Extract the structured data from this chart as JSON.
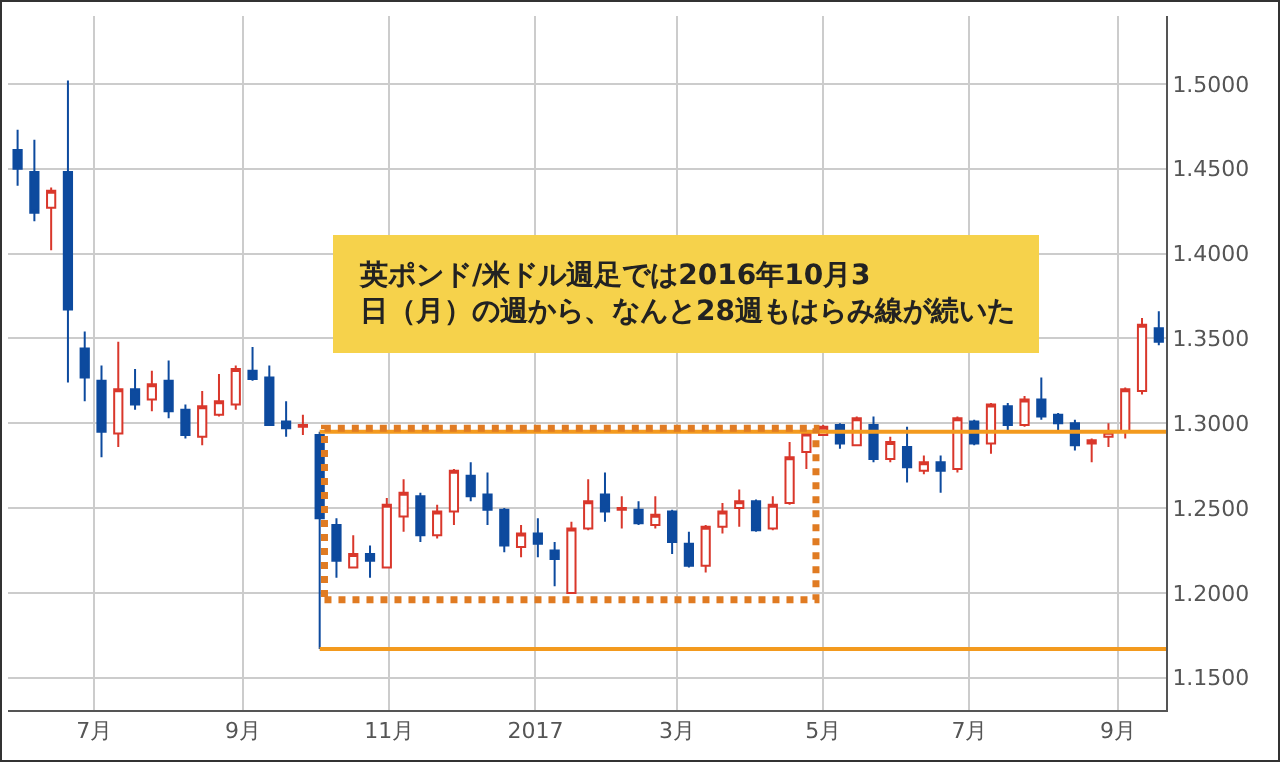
{
  "chart_data": {
    "type": "candlestick",
    "x": [
      "2016-05-30",
      "2016-06-06",
      "2016-06-13",
      "2016-06-20",
      "2016-06-27",
      "2016-07-04",
      "2016-07-11",
      "2016-07-18",
      "2016-07-25",
      "2016-08-01",
      "2016-08-08",
      "2016-08-15",
      "2016-08-22",
      "2016-08-29",
      "2016-09-05",
      "2016-09-12",
      "2016-09-19",
      "2016-09-26",
      "2016-10-03",
      "2016-10-10",
      "2016-10-17",
      "2016-10-24",
      "2016-10-31",
      "2016-11-07",
      "2016-11-14",
      "2016-11-21",
      "2016-11-28",
      "2016-12-05",
      "2016-12-12",
      "2016-12-19",
      "2016-12-26",
      "2017-01-02",
      "2017-01-09",
      "2017-01-16",
      "2017-01-23",
      "2017-01-30",
      "2017-02-06",
      "2017-02-13",
      "2017-02-20",
      "2017-02-27",
      "2017-03-06",
      "2017-03-13",
      "2017-03-20",
      "2017-03-27",
      "2017-04-03",
      "2017-04-10",
      "2017-04-17",
      "2017-04-24",
      "2017-05-01",
      "2017-05-08",
      "2017-05-15",
      "2017-05-22",
      "2017-05-29",
      "2017-06-05",
      "2017-06-12",
      "2017-06-19",
      "2017-06-26",
      "2017-07-03",
      "2017-07-10",
      "2017-07-17",
      "2017-07-24",
      "2017-07-31",
      "2017-08-07",
      "2017-08-14",
      "2017-08-21",
      "2017-08-28",
      "2017-09-04",
      "2017-09-11",
      "2017-09-18"
    ],
    "ohlc": [
      [
        1.461,
        1.473,
        1.44,
        1.45
      ],
      [
        1.448,
        1.467,
        1.419,
        1.424
      ],
      [
        1.427,
        1.439,
        1.402,
        1.437
      ],
      [
        1.448,
        1.502,
        1.324,
        1.367
      ],
      [
        1.344,
        1.354,
        1.313,
        1.327
      ],
      [
        1.325,
        1.334,
        1.28,
        1.295
      ],
      [
        1.294,
        1.348,
        1.286,
        1.32
      ],
      [
        1.32,
        1.332,
        1.308,
        1.311
      ],
      [
        1.314,
        1.331,
        1.307,
        1.323
      ],
      [
        1.325,
        1.337,
        1.303,
        1.307
      ],
      [
        1.308,
        1.311,
        1.291,
        1.293
      ],
      [
        1.292,
        1.319,
        1.287,
        1.31
      ],
      [
        1.305,
        1.329,
        1.304,
        1.313
      ],
      [
        1.311,
        1.334,
        1.308,
        1.332
      ],
      [
        1.331,
        1.345,
        1.325,
        1.326
      ],
      [
        1.327,
        1.334,
        1.299,
        1.299
      ],
      [
        1.301,
        1.313,
        1.292,
        1.297
      ],
      [
        1.298,
        1.305,
        1.293,
        1.299
      ],
      [
        1.293,
        1.295,
        1.167,
        1.244
      ],
      [
        1.24,
        1.244,
        1.209,
        1.219
      ],
      [
        1.215,
        1.234,
        1.215,
        1.223
      ],
      [
        1.223,
        1.228,
        1.209,
        1.219
      ],
      [
        1.215,
        1.256,
        1.215,
        1.252
      ],
      [
        1.245,
        1.267,
        1.236,
        1.259
      ],
      [
        1.257,
        1.259,
        1.23,
        1.234
      ],
      [
        1.234,
        1.252,
        1.232,
        1.248
      ],
      [
        1.248,
        1.273,
        1.24,
        1.272
      ],
      [
        1.269,
        1.277,
        1.254,
        1.257
      ],
      [
        1.258,
        1.271,
        1.24,
        1.249
      ],
      [
        1.249,
        1.25,
        1.224,
        1.228
      ],
      [
        1.227,
        1.24,
        1.221,
        1.235
      ],
      [
        1.235,
        1.244,
        1.221,
        1.229
      ],
      [
        1.225,
        1.23,
        1.204,
        1.22
      ],
      [
        1.2,
        1.242,
        1.2,
        1.238
      ],
      [
        1.238,
        1.267,
        1.237,
        1.254
      ],
      [
        1.258,
        1.271,
        1.242,
        1.248
      ],
      [
        1.249,
        1.257,
        1.238,
        1.25
      ],
      [
        1.249,
        1.254,
        1.24,
        1.241
      ],
      [
        1.24,
        1.257,
        1.238,
        1.246
      ],
      [
        1.248,
        1.249,
        1.223,
        1.23
      ],
      [
        1.229,
        1.236,
        1.215,
        1.216
      ],
      [
        1.216,
        1.24,
        1.212,
        1.239
      ],
      [
        1.239,
        1.253,
        1.235,
        1.248
      ],
      [
        1.25,
        1.261,
        1.239,
        1.254
      ],
      [
        1.254,
        1.255,
        1.236,
        1.237
      ],
      [
        1.238,
        1.257,
        1.237,
        1.252
      ],
      [
        1.253,
        1.289,
        1.252,
        1.28
      ],
      [
        1.283,
        1.295,
        1.273,
        1.294
      ],
      [
        1.293,
        1.299,
        1.293,
        1.298
      ],
      [
        1.299,
        1.3,
        1.285,
        1.288
      ],
      [
        1.287,
        1.304,
        1.287,
        1.303
      ],
      [
        1.299,
        1.304,
        1.277,
        1.279
      ],
      [
        1.279,
        1.292,
        1.277,
        1.289
      ],
      [
        1.286,
        1.298,
        1.265,
        1.274
      ],
      [
        1.272,
        1.281,
        1.27,
        1.277
      ],
      [
        1.277,
        1.281,
        1.259,
        1.272
      ],
      [
        1.273,
        1.304,
        1.271,
        1.303
      ],
      [
        1.301,
        1.302,
        1.287,
        1.288
      ],
      [
        1.288,
        1.312,
        1.282,
        1.311
      ],
      [
        1.31,
        1.312,
        1.295,
        1.299
      ],
      [
        1.299,
        1.316,
        1.298,
        1.314
      ],
      [
        1.314,
        1.327,
        1.302,
        1.304
      ],
      [
        1.305,
        1.306,
        1.295,
        1.3
      ],
      [
        1.3,
        1.302,
        1.284,
        1.287
      ],
      [
        1.288,
        1.291,
        1.277,
        1.29
      ],
      [
        1.292,
        1.3,
        1.286,
        1.295
      ],
      [
        1.295,
        1.321,
        1.291,
        1.32
      ],
      [
        1.319,
        1.362,
        1.317,
        1.358
      ],
      [
        1.356,
        1.366,
        1.346,
        1.348
      ]
    ],
    "colors": [
      "#0d4a9e",
      "#0d4a9e",
      "#d9372b",
      "#0d4a9e",
      "#0d4a9e",
      "#0d4a9e",
      "#d9372b",
      "#0d4a9e",
      "#d9372b",
      "#0d4a9e",
      "#0d4a9e",
      "#d9372b",
      "#d9372b",
      "#d9372b",
      "#0d4a9e",
      "#0d4a9e",
      "#0d4a9e",
      "#d9372b",
      "#0d4a9e",
      "#0d4a9e",
      "#d9372b",
      "#0d4a9e",
      "#d9372b",
      "#d9372b",
      "#0d4a9e",
      "#d9372b",
      "#d9372b",
      "#0d4a9e",
      "#0d4a9e",
      "#0d4a9e",
      "#d9372b",
      "#0d4a9e",
      "#0d4a9e",
      "#d9372b",
      "#d9372b",
      "#0d4a9e",
      "#d9372b",
      "#0d4a9e",
      "#d9372b",
      "#0d4a9e",
      "#0d4a9e",
      "#d9372b",
      "#d9372b",
      "#d9372b",
      "#0d4a9e",
      "#d9372b",
      "#d9372b",
      "#d9372b",
      "#d9372b",
      "#0d4a9e",
      "#d9372b",
      "#0d4a9e",
      "#d9372b",
      "#0d4a9e",
      "#d9372b",
      "#0d4a9e",
      "#d9372b",
      "#0d4a9e",
      "#d9372b",
      "#0d4a9e",
      "#d9372b",
      "#0d4a9e",
      "#0d4a9e",
      "#0d4a9e",
      "#d9372b",
      "#d9372b",
      "#d9372b",
      "#d9372b",
      "#0d4a9e"
    ],
    "xlim": [
      "2016-05-26",
      "2017-09-21"
    ],
    "xticks": [
      {
        "value": "2016-07-01",
        "label": "7月"
      },
      {
        "value": "2016-09-01",
        "label": "9月"
      },
      {
        "value": "2016-11-01",
        "label": "11月"
      },
      {
        "value": "2017-01-01",
        "label": "2017"
      },
      {
        "value": "2017-03-01",
        "label": "3月"
      },
      {
        "value": "2017-05-01",
        "label": "5月"
      },
      {
        "value": "2017-07-01",
        "label": "7月"
      },
      {
        "value": "2017-09-01",
        "label": "9月"
      }
    ],
    "ylim": [
      1.131,
      1.54
    ],
    "yticks": [
      {
        "value": 1.15,
        "label": "1.1500"
      },
      {
        "value": 1.2,
        "label": "1.2000"
      },
      {
        "value": 1.25,
        "label": "1.2500"
      },
      {
        "value": 1.3,
        "label": "1.3000"
      },
      {
        "value": 1.35,
        "label": "1.3500"
      },
      {
        "value": 1.4,
        "label": "1.4000"
      },
      {
        "value": 1.45,
        "label": "1.4500"
      },
      {
        "value": 1.5,
        "label": "1.5000"
      }
    ],
    "ref_lines": [
      {
        "axis": "y",
        "value": 1.295,
        "color": "#f39a1e"
      },
      {
        "axis": "y",
        "value": 1.167,
        "color": "#f39a1e"
      }
    ],
    "annotations": [
      "英ポンド/米ドル週足では2016年10月3日（月）の週から、なんと28週もはらみ線が続いた"
    ],
    "grid": true,
    "legend": false
  }
}
